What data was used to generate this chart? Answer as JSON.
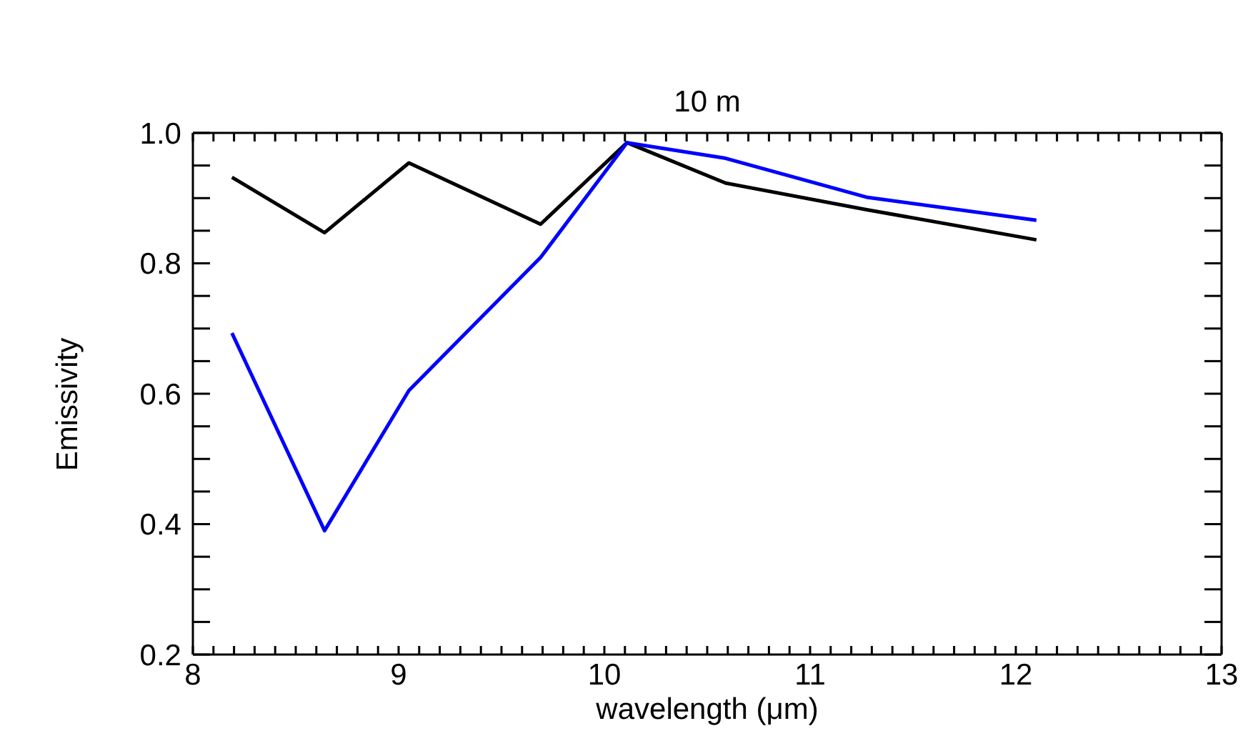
{
  "chart_data": {
    "type": "line",
    "title": "10 m",
    "xlabel": "wavelength (μm)",
    "ylabel": "Emissivity",
    "x": [
      8.19,
      8.64,
      9.05,
      9.69,
      10.11,
      10.59,
      11.28,
      12.1
    ],
    "series": [
      {
        "color": "#000000",
        "values": [
          0.932,
          0.847,
          0.954,
          0.86,
          0.985,
          0.923,
          0.882,
          0.836
        ]
      },
      {
        "color": "#0000ff",
        "values": [
          0.693,
          0.39,
          0.605,
          0.809,
          0.985,
          0.961,
          0.901,
          0.866
        ]
      }
    ],
    "xlim": [
      8,
      13
    ],
    "xticks": [
      8,
      {
        "value": 8.1,
        "label": null
      },
      {
        "value": 8.2,
        "label": null
      },
      {
        "value": 8.3,
        "label": null
      },
      {
        "value": 8.4,
        "label": null
      },
      {
        "value": 8.5,
        "label": null
      },
      {
        "value": 8.6,
        "label": null
      },
      {
        "value": 8.7,
        "label": null
      },
      {
        "value": 8.8,
        "label": null
      },
      {
        "value": 8.9,
        "label": null
      },
      9,
      {
        "value": 9.1,
        "label": null
      },
      {
        "value": 9.2,
        "label": null
      },
      {
        "value": 9.3,
        "label": null
      },
      {
        "value": 9.4,
        "label": null
      },
      {
        "value": 9.5,
        "label": null
      },
      {
        "value": 9.6,
        "label": null
      },
      {
        "value": 9.7,
        "label": null
      },
      {
        "value": 9.8,
        "label": null
      },
      {
        "value": 9.9,
        "label": null
      },
      10,
      {
        "value": 10.1,
        "label": null
      },
      {
        "value": 10.2,
        "label": null
      },
      {
        "value": 10.3,
        "label": null
      },
      {
        "value": 10.4,
        "label": null
      },
      {
        "value": 10.5,
        "label": null
      },
      {
        "value": 10.6,
        "label": null
      },
      {
        "value": 10.7,
        "label": null
      },
      {
        "value": 10.8,
        "label": null
      },
      {
        "value": 10.9,
        "label": null
      },
      11,
      {
        "value": 11.1,
        "label": null
      },
      {
        "value": 11.2,
        "label": null
      },
      {
        "value": 11.3,
        "label": null
      },
      {
        "value": 11.4,
        "label": null
      },
      {
        "value": 11.5,
        "label": null
      },
      {
        "value": 11.6,
        "label": null
      },
      {
        "value": 11.7,
        "label": null
      },
      {
        "value": 11.8,
        "label": null
      },
      {
        "value": 11.9,
        "label": null
      },
      12,
      {
        "value": 12.1,
        "label": null
      },
      {
        "value": 12.2,
        "label": null
      },
      {
        "value": 12.3,
        "label": null
      },
      {
        "value": 12.4,
        "label": null
      },
      {
        "value": 12.5,
        "label": null
      },
      {
        "value": 12.6,
        "label": null
      },
      {
        "value": 12.7,
        "label": null
      },
      {
        "value": 12.8,
        "label": null
      },
      {
        "value": 12.9,
        "label": null
      },
      13
    ],
    "ylim": [
      0.2,
      1.0
    ],
    "yticks": [
      {
        "value": 0.2,
        "label": "0.2"
      },
      {
        "value": 0.25,
        "label": null
      },
      {
        "value": 0.3,
        "label": null
      },
      {
        "value": 0.35,
        "label": null
      },
      {
        "value": 0.4,
        "label": "0.4"
      },
      {
        "value": 0.45,
        "label": null
      },
      {
        "value": 0.5,
        "label": null
      },
      {
        "value": 0.55,
        "label": null
      },
      {
        "value": 0.6,
        "label": "0.6"
      },
      {
        "value": 0.65,
        "label": null
      },
      {
        "value": 0.7,
        "label": null
      },
      {
        "value": 0.75,
        "label": null
      },
      {
        "value": 0.8,
        "label": "0.8"
      },
      {
        "value": 0.85,
        "label": null
      },
      {
        "value": 0.9,
        "label": null
      },
      {
        "value": 0.95,
        "label": null
      },
      {
        "value": 1.0,
        "label": "1.0"
      }
    ],
    "grid": false,
    "legend": false,
    "marker": "none",
    "line_style": "solid"
  }
}
